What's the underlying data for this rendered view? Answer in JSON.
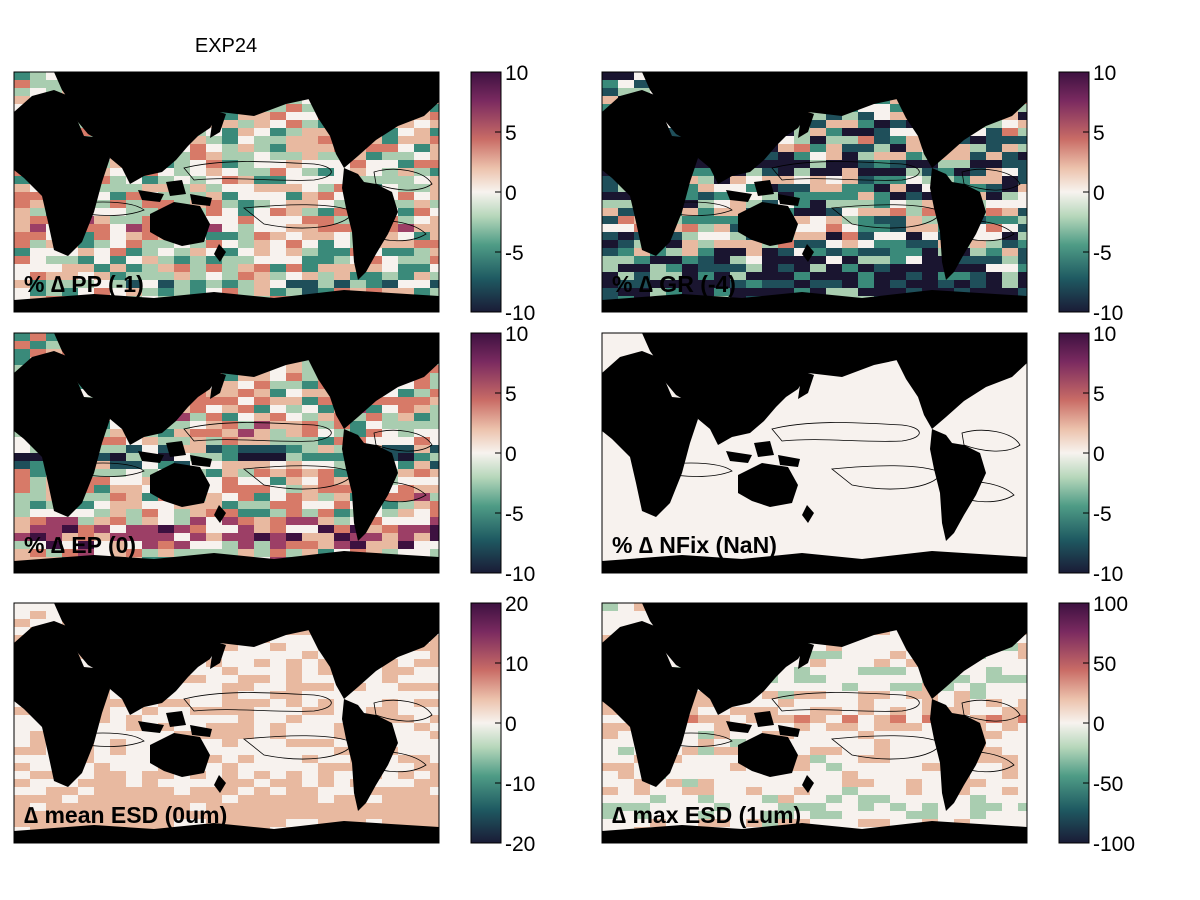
{
  "figure_title": "EXP24",
  "colormap": [
    "#1a1530",
    "#1f4f5a",
    "#3a8a7a",
    "#a9cdb0",
    "#f7f2ee",
    "#e8b9a0",
    "#d77a68",
    "#9c3f66",
    "#3d1140"
  ],
  "land_color": "#000000",
  "chart_data": [
    {
      "type": "heatmap",
      "label": "% ∆ PP (-1)",
      "colorbar_ticks": [
        "10",
        "5",
        "0",
        "-5",
        "-10"
      ],
      "clim": [
        -10,
        10
      ]
    },
    {
      "type": "heatmap",
      "label": "% ∆ GR (-4)",
      "colorbar_ticks": [
        "10",
        "5",
        "0",
        "-5",
        "-10"
      ],
      "clim": [
        -10,
        10
      ]
    },
    {
      "type": "heatmap",
      "label": "% ∆ EP (0)",
      "colorbar_ticks": [
        "10",
        "5",
        "0",
        "-5",
        "-10"
      ],
      "clim": [
        -10,
        10
      ]
    },
    {
      "type": "heatmap",
      "label": "% ∆ NFix (NaN)",
      "colorbar_ticks": [
        "10",
        "5",
        "0",
        "-5",
        "-10"
      ],
      "clim": [
        -10,
        10
      ]
    },
    {
      "type": "heatmap",
      "label": "∆ mean ESD (0um)",
      "colorbar_ticks": [
        "20",
        "10",
        "0",
        "-10",
        "-20"
      ],
      "clim": [
        -20,
        20
      ]
    },
    {
      "type": "heatmap",
      "label": "∆ max ESD (1um)",
      "colorbar_ticks": [
        "100",
        "50",
        "0",
        "-50",
        "-100"
      ],
      "clim": [
        -100,
        100
      ]
    }
  ]
}
